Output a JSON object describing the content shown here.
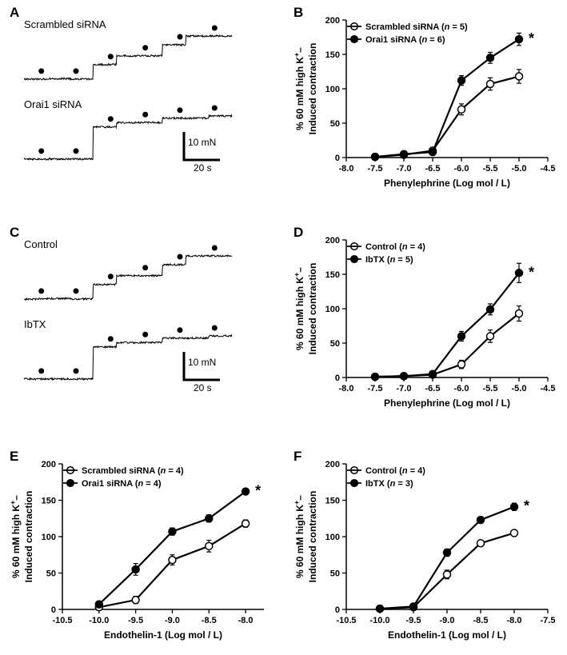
{
  "colors": {
    "bg": "#ffffff",
    "stroke": "#000000",
    "open_marker_fill": "#ffffff",
    "filled_marker_fill": "#000000"
  },
  "panelA": {
    "label": "A",
    "trace1_label": "Scrambled siRNA",
    "trace2_label": "Orai1 siRNA",
    "scalebar_y": "10 mN",
    "scalebar_x": "20 s"
  },
  "panelB": {
    "label": "B",
    "type": "line",
    "xlabel": "Phenylephrine (Log mol / L)",
    "ylabel_line1": "% 60 mM high K",
    "ylabel_line2": "Induced contraction",
    "ylabel_sup": "+",
    "ylim": [
      0,
      200
    ],
    "ytick_step": 50,
    "xlim": [
      -8.0,
      -4.5
    ],
    "xticks": [
      -8.0,
      -7.5,
      -7.0,
      -6.5,
      -6.0,
      -5.5,
      -5.0,
      -4.5
    ],
    "legend": [
      {
        "label": "Scrambled siRNA (",
        "n": "n",
        "nval": " = 5)",
        "marker": "open"
      },
      {
        "label": "Orai1 siRNA (",
        "n": "n",
        "nval": " = 6)",
        "marker": "filled"
      }
    ],
    "series_open": {
      "x": [
        -7.5,
        -7.0,
        -6.5,
        -6.0,
        -5.5,
        -5.0
      ],
      "y": [
        1,
        4,
        10,
        70,
        107,
        118
      ],
      "err": [
        2,
        3,
        4,
        8,
        9,
        10
      ]
    },
    "series_filled": {
      "x": [
        -7.5,
        -7.0,
        -6.5,
        -6.0,
        -5.5,
        -5.0
      ],
      "y": [
        1,
        5,
        8,
        112,
        145,
        172
      ],
      "err": [
        2,
        3,
        4,
        7,
        8,
        9
      ]
    },
    "star": "*"
  },
  "panelC": {
    "label": "C",
    "trace1_label": "Control",
    "trace2_label": "IbTX",
    "scalebar_y": "10 mN",
    "scalebar_x": "20 s"
  },
  "panelD": {
    "label": "D",
    "type": "line",
    "xlabel": "Phenylephrine (Log mol / L)",
    "ylabel_line1": "% 60 mM high K",
    "ylabel_line2": "Induced contraction",
    "ylabel_sup": "+",
    "ylim": [
      0,
      200
    ],
    "ytick_step": 50,
    "xlim": [
      -8.0,
      -4.5
    ],
    "xticks": [
      -8.0,
      -7.5,
      -7.0,
      -6.5,
      -6.0,
      -5.5,
      -5.0,
      -4.5
    ],
    "legend": [
      {
        "label": "Control (",
        "n": "n",
        "nval": " = 4)",
        "marker": "open"
      },
      {
        "label": "IbTX (",
        "n": "n",
        "nval": " = 5)",
        "marker": "filled"
      }
    ],
    "series_open": {
      "x": [
        -7.5,
        -7.0,
        -6.5,
        -6.0,
        -5.5,
        -5.0
      ],
      "y": [
        1,
        2,
        4,
        19,
        60,
        93
      ],
      "err": [
        2,
        2,
        3,
        6,
        9,
        11
      ]
    },
    "series_filled": {
      "x": [
        -7.5,
        -7.0,
        -6.5,
        -6.0,
        -5.5,
        -5.0
      ],
      "y": [
        1,
        2,
        5,
        60,
        99,
        152
      ],
      "err": [
        2,
        2,
        3,
        7,
        8,
        14
      ]
    },
    "star": "*"
  },
  "panelE": {
    "label": "E",
    "type": "line",
    "xlabel": "Endothelin-1 (Log mol / L)",
    "ylabel_line1": "% 60 mM high K",
    "ylabel_line2": "Induced contraction",
    "ylabel_sup": "+",
    "ylim": [
      0,
      200
    ],
    "ytick_step": 50,
    "xlim": [
      -10.5,
      -7.75
    ],
    "xticks": [
      -10.5,
      -10.0,
      -9.5,
      -9.0,
      -8.5,
      -8.0
    ],
    "legend": [
      {
        "label": "Scrambled siRNA (",
        "n": "n",
        "nval": " = 4)",
        "marker": "open"
      },
      {
        "label": "Orai1 siRNA (",
        "n": "n",
        "nval": " = 4)",
        "marker": "filled"
      }
    ],
    "series_open": {
      "x": [
        -10.0,
        -9.5,
        -9.0,
        -8.5,
        -8.0
      ],
      "y": [
        3,
        13,
        68,
        87,
        118
      ],
      "err": [
        2,
        5,
        7,
        8,
        5
      ]
    },
    "series_filled": {
      "x": [
        -10.0,
        -9.5,
        -9.0,
        -8.5,
        -8.0
      ],
      "y": [
        7,
        55,
        107,
        125,
        162
      ],
      "err": [
        3,
        8,
        5,
        5,
        4
      ]
    },
    "star": "*"
  },
  "panelF": {
    "label": "F",
    "type": "line",
    "xlabel": "Endothelin-1 (Log mol / L)",
    "ylabel_line1": "% 60 mM high K",
    "ylabel_line2": "Induced contraction",
    "ylabel_sup": "+",
    "ylim": [
      0,
      200
    ],
    "ytick_step": 50,
    "xlim": [
      -10.5,
      -7.5
    ],
    "xticks": [
      -10.5,
      -10.0,
      -9.5,
      -9.0,
      -8.5,
      -8.0,
      -7.5
    ],
    "legend": [
      {
        "label": "Control (",
        "n": "n",
        "nval": " = 4)",
        "marker": "open"
      },
      {
        "label": "IbTX (",
        "n": "n",
        "nval": " = 3)",
        "marker": "filled"
      }
    ],
    "series_open": {
      "x": [
        -10.0,
        -9.5,
        -9.0,
        -8.5,
        -8.0
      ],
      "y": [
        1,
        3,
        48,
        91,
        105
      ],
      "err": [
        2,
        2,
        6,
        4,
        4
      ]
    },
    "series_filled": {
      "x": [
        -10.0,
        -9.5,
        -9.0,
        -8.5,
        -8.0
      ],
      "y": [
        1,
        4,
        78,
        123,
        141
      ],
      "err": [
        2,
        2,
        5,
        4,
        5
      ]
    },
    "star": "*"
  },
  "layout": {
    "trace_panel_w": 305,
    "trace_panel_h": 230,
    "chart_panel_w": 330,
    "chart_panel_h": 230,
    "bottom_chart_w": 330,
    "bottom_chart_h": 230,
    "line_width": 2.2,
    "marker_r": 4.5,
    "axis_fontsize": 12,
    "tick_fontsize": 11
  }
}
